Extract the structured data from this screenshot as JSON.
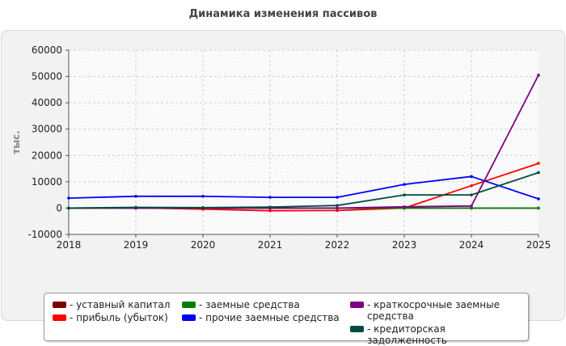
{
  "chart_data": {
    "type": "line",
    "title": "Динамика изменения пассивов",
    "ylabel": "тыс.",
    "xlabel": "",
    "x": [
      "2018",
      "2019",
      "2020",
      "2021",
      "2022",
      "2023",
      "2024",
      "2025"
    ],
    "ylim": [
      -10000,
      60000
    ],
    "yticks": [
      "60000",
      "50000",
      "40000",
      "30000",
      "20000",
      "10000",
      "0",
      "-10000"
    ],
    "grid": true,
    "legend_position": "bottom",
    "series": [
      {
        "name": "- уставный капитал",
        "color": "#7a0000",
        "values": [
          0,
          0,
          0,
          0,
          0,
          0,
          0,
          0
        ]
      },
      {
        "name": "- прибыль (убыток)",
        "color": "#ff0000",
        "values": [
          0,
          100,
          -400,
          -1000,
          -900,
          0,
          8500,
          17000
        ]
      },
      {
        "name": "- заемные средства",
        "color": "#008000",
        "values": [
          0,
          0,
          0,
          0,
          0,
          0,
          0,
          0
        ]
      },
      {
        "name": "- прочие заемные средства",
        "color": "#0000ff",
        "values": [
          3800,
          4500,
          4500,
          4100,
          4100,
          9000,
          12000,
          3500
        ]
      },
      {
        "name": "- краткосрочные заемные средства",
        "color": "#800080",
        "values": [
          0,
          0,
          0,
          0,
          0,
          500,
          800,
          50500
        ]
      },
      {
        "name": "- кредиторская задолженность",
        "color": "#004d40",
        "values": [
          0,
          300,
          200,
          400,
          1000,
          5000,
          5000,
          13500
        ]
      }
    ]
  }
}
